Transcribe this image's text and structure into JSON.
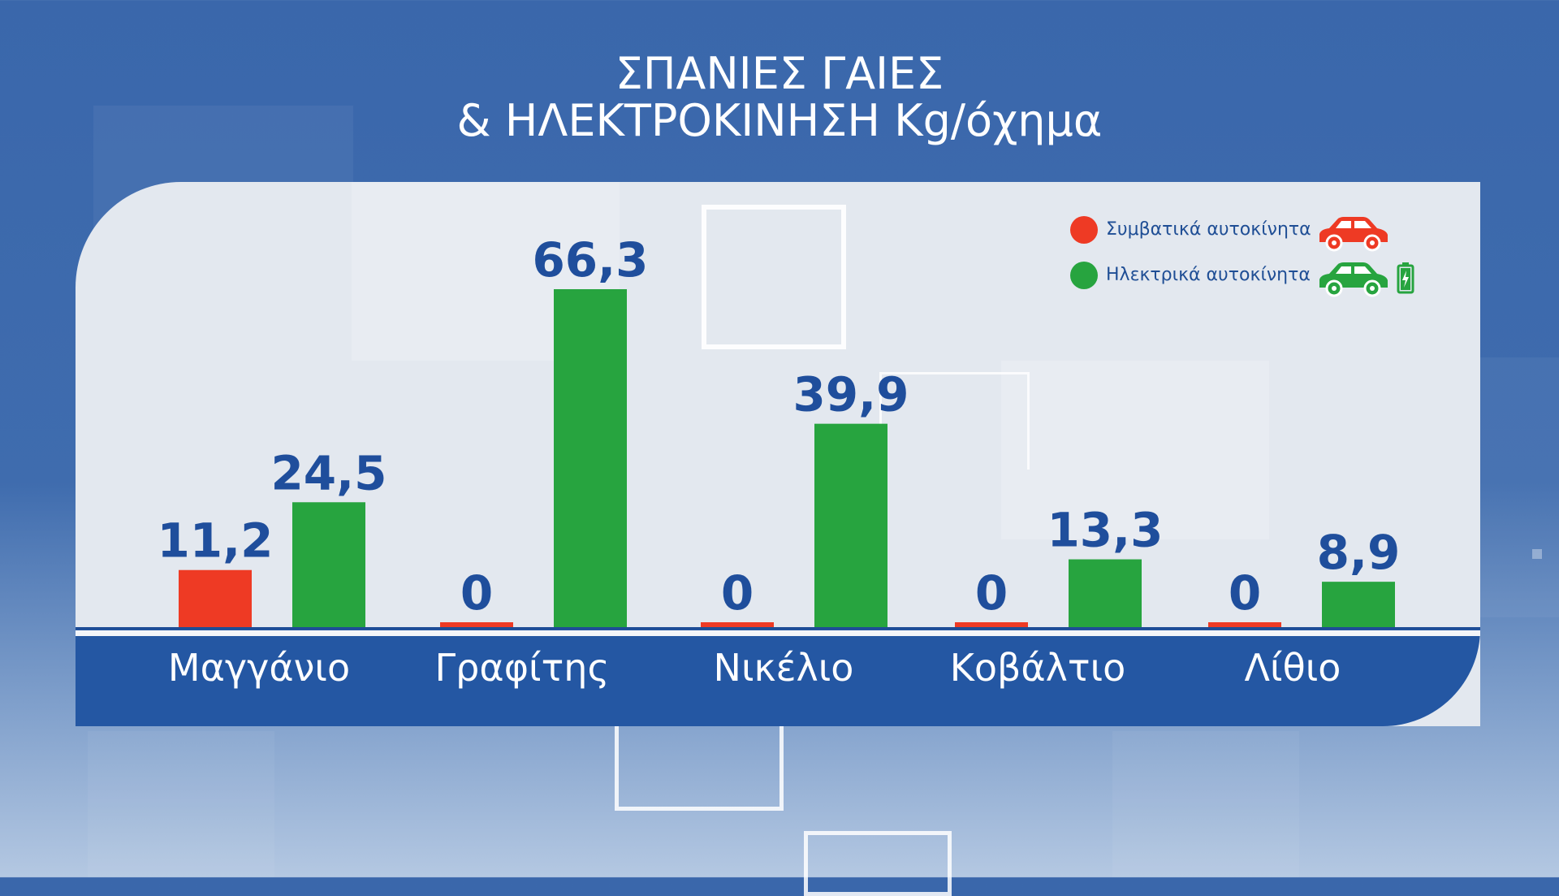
{
  "title": {
    "line1": "ΣΠΑΝΙΕΣ ΓΑΙΕΣ",
    "line2": "& ΗΛΕΚΤΡΟΚΙΝΗΣΗ Kg/όχημα"
  },
  "legend": {
    "conventional_label": "Συμβατικά αυτοκίνητα",
    "electric_label": "Ηλεκτρικά αυτοκίνητα",
    "conventional_icon": "car-icon",
    "electric_icon": "car-icon",
    "battery_icon": "battery-charging-icon"
  },
  "colors": {
    "conventional": "#ee3a24",
    "electric": "#27a43f",
    "value_label": "#1f4e9c",
    "axis_band": "#2457a3"
  },
  "chart_data": {
    "type": "bar",
    "title": "ΣΠΑΝΙΕΣ ΓΑΙΕΣ & ΗΛΕΚΤΡΟΚΙΝΗΣΗ Kg/όχημα",
    "categories": [
      "Μαγγάνιο",
      "Γραφίτης",
      "Νικέλιο",
      "Κοβάλτιο",
      "Λίθιο"
    ],
    "series": [
      {
        "name": "Συμβατικά αυτοκίνητα",
        "values": [
          11.2,
          0,
          0,
          0,
          0
        ],
        "labels": [
          "11,2",
          "0",
          "0",
          "0",
          "0"
        ]
      },
      {
        "name": "Ηλεκτρικά αυτοκίνητα",
        "values": [
          24.5,
          66.3,
          39.9,
          13.3,
          8.9
        ],
        "labels": [
          "24,5",
          "66,3",
          "39,9",
          "13,3",
          "8,9"
        ]
      }
    ],
    "xlabel": "",
    "ylabel": "",
    "ylim": [
      0,
      66.3
    ],
    "grid": false,
    "legend_position": "top-right"
  }
}
